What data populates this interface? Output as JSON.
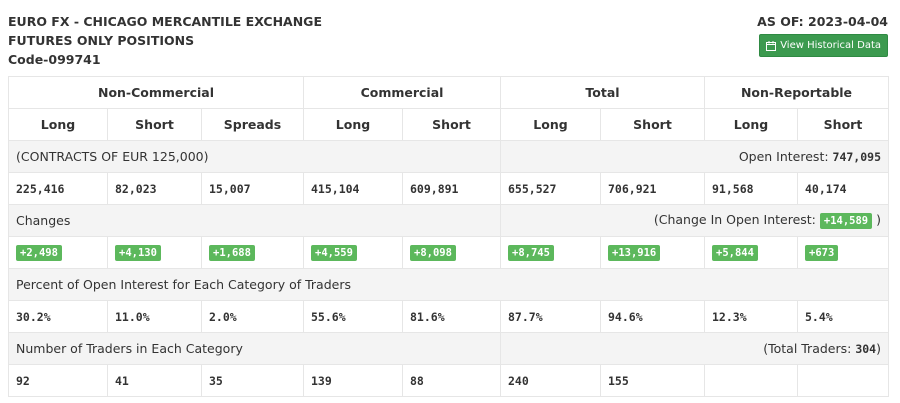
{
  "header": {
    "title_line1": "EURO FX - CHICAGO MERCANTILE EXCHANGE",
    "title_line2": "FUTURES ONLY POSITIONS",
    "code": "Code-099741",
    "as_of": "AS OF: 2023-04-04",
    "history_button": "View Historical Data"
  },
  "groups": [
    "Non-Commercial",
    "Commercial",
    "Total",
    "Non-Reportable"
  ],
  "columns": [
    "Long",
    "Short",
    "Spreads",
    "Long",
    "Short",
    "Long",
    "Short",
    "Long",
    "Short"
  ],
  "contracts": {
    "label": "(CONTRACTS OF EUR 125,000)",
    "oi_label": "Open Interest: ",
    "oi_value": "747,095"
  },
  "positions": [
    "225,416",
    "82,023",
    "15,007",
    "415,104",
    "609,891",
    "655,527",
    "706,921",
    "91,568",
    "40,174"
  ],
  "changes": {
    "label": "Changes",
    "oi_label": "(Change In Open Interest: ",
    "oi_value": "+14,589",
    "oi_close": " )",
    "values": [
      "+2,498",
      "+4,130",
      "+1,688",
      "+4,559",
      "+8,098",
      "+8,745",
      "+13,916",
      "+5,844",
      "+673"
    ]
  },
  "percent": {
    "label": "Percent of Open Interest for Each Category of Traders",
    "values": [
      "30.2%",
      "11.0%",
      "2.0%",
      "55.6%",
      "81.6%",
      "87.7%",
      "94.6%",
      "12.3%",
      "5.4%"
    ]
  },
  "traders": {
    "label": "Number of Traders in Each Category",
    "total_label": "(Total Traders: ",
    "total_value": "304",
    "total_close": ")",
    "values": [
      "92",
      "41",
      "35",
      "139",
      "88",
      "240",
      "155",
      "",
      ""
    ]
  },
  "colors": {
    "badge": "#5cb85c",
    "button": "#3c9a4f",
    "shade": "#f4f4f4"
  }
}
